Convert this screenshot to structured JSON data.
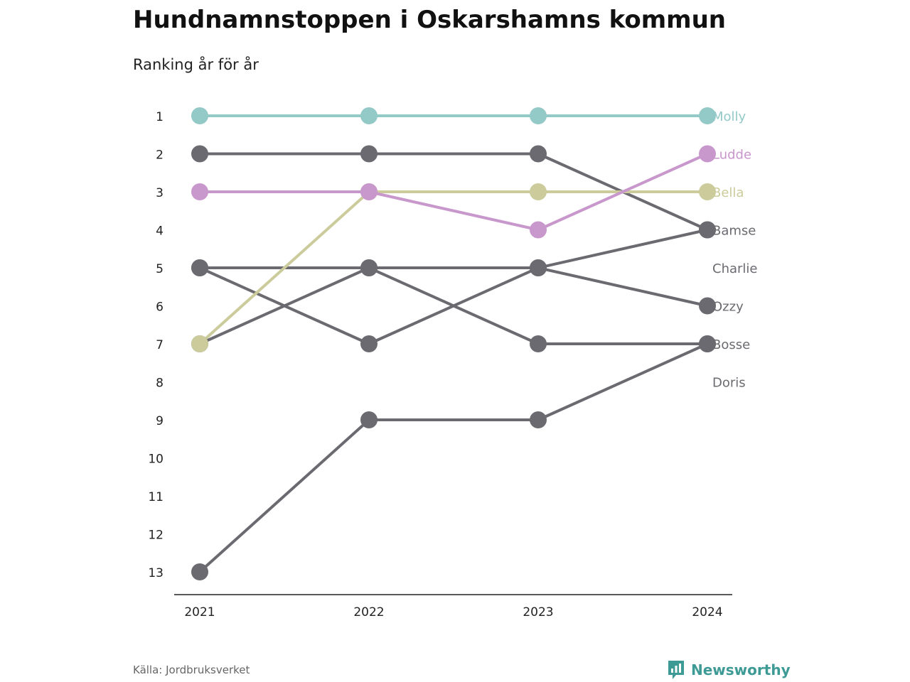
{
  "title": "Hundnamnstoppen i Oskarshamns kommun",
  "subtitle": "Ranking år för år",
  "source": "Källa: Jordbruksverket",
  "brand": {
    "name": "Newsworthy",
    "icon": "newsworthy-logo-icon",
    "color": "#3d9a94"
  },
  "chart_data": {
    "type": "line",
    "x": [
      "2021",
      "2022",
      "2023",
      "2024"
    ],
    "y_ticks": [
      1,
      2,
      3,
      4,
      5,
      6,
      7,
      8,
      9,
      10,
      11,
      12,
      13
    ],
    "ylim": [
      1,
      13
    ],
    "y_reversed": true,
    "grid": false,
    "legend": "end-labels",
    "series": [
      {
        "name": "Doris",
        "values": [
          13,
          9,
          9,
          7
        ],
        "color": "#6b6a70"
      },
      {
        "name": "Bosse",
        "values": [
          7,
          5,
          7,
          7
        ],
        "color": "#6b6a70"
      },
      {
        "name": "Ozzy",
        "values": [
          5,
          5,
          5,
          6
        ],
        "color": "#6b6a70"
      },
      {
        "name": "Charlie",
        "values": [
          5,
          7,
          5,
          4
        ],
        "color": "#6b6a70"
      },
      {
        "name": "Bamse",
        "values": [
          2,
          2,
          2,
          4
        ],
        "color": "#6b6a70"
      },
      {
        "name": "Bella",
        "values": [
          7,
          3,
          3,
          3
        ],
        "color": "#cbcb9b"
      },
      {
        "name": "Ludde",
        "values": [
          3,
          3,
          4,
          2
        ],
        "color": "#c897cc"
      },
      {
        "name": "Molly",
        "values": [
          1,
          1,
          1,
          1
        ],
        "color": "#93c9c7"
      }
    ],
    "end_labels": [
      {
        "name": "Molly",
        "rank": 1,
        "color": "#93c9c7"
      },
      {
        "name": "Ludde",
        "rank": 2,
        "color": "#c897cc"
      },
      {
        "name": "Bella",
        "rank": 3,
        "color": "#cbcb9b"
      },
      {
        "name": "Bamse",
        "rank": 4,
        "color": "#6b6a70"
      },
      {
        "name": "Charlie",
        "rank": 5,
        "color": "#6b6a70"
      },
      {
        "name": "Ozzy",
        "rank": 6,
        "color": "#6b6a70"
      },
      {
        "name": "Bosse",
        "rank": 7,
        "color": "#6b6a70"
      },
      {
        "name": "Doris",
        "rank": 8,
        "color": "#6b6a70"
      }
    ]
  }
}
